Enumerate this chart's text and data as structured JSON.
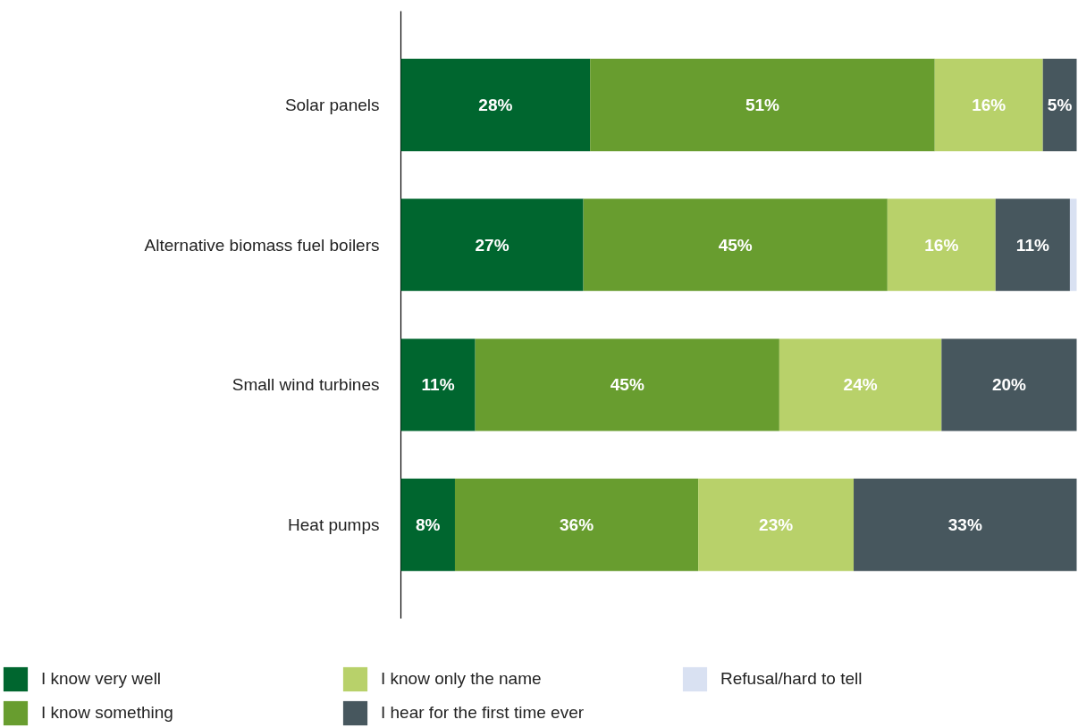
{
  "chart_data": {
    "type": "bar",
    "orientation": "horizontal",
    "stacked": true,
    "categories": [
      "Solar panels",
      "Alternative biomass fuel boilers",
      "Small wind turbines",
      "Heat pumps"
    ],
    "series": [
      {
        "name": "I know very well",
        "color": "#00662f",
        "values": [
          28,
          27,
          11,
          8
        ],
        "value_labels": [
          "28%",
          "27%",
          "11%",
          "8%"
        ]
      },
      {
        "name": "I know something",
        "color": "#689d2f",
        "values": [
          51,
          45,
          45,
          36
        ],
        "value_labels": [
          "51%",
          "45%",
          "45%",
          "36%"
        ]
      },
      {
        "name": "I know only the name",
        "color": "#b8d16a",
        "values": [
          16,
          16,
          24,
          23
        ],
        "value_labels": [
          "16%",
          "16%",
          "24%",
          "23%"
        ]
      },
      {
        "name": "I hear for the first time ever",
        "color": "#47575e",
        "values": [
          5,
          11,
          20,
          33
        ],
        "value_labels": [
          "5%",
          "11%",
          "20%",
          "33%"
        ]
      },
      {
        "name": "Refusal/hard to tell",
        "color": "#d9e1f2",
        "values": [
          null,
          1,
          null,
          null
        ]
      }
    ],
    "tick_labels": "y",
    "legend": "bottom"
  }
}
